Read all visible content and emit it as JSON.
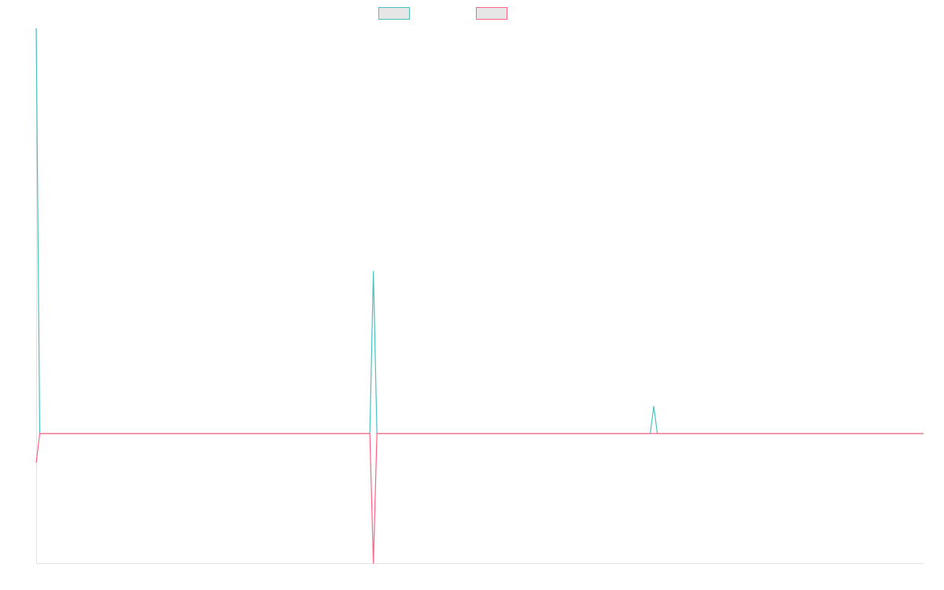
{
  "chart_data": {
    "type": "line",
    "title": "",
    "xlabel": "",
    "ylabel": "",
    "x": [
      0,
      1,
      2,
      3,
      4,
      5,
      6,
      7,
      8,
      9,
      10,
      11,
      12,
      13,
      14,
      15,
      16,
      17,
      18,
      19,
      20,
      21,
      22,
      23,
      24,
      25,
      26,
      27,
      28,
      29,
      30,
      31,
      32,
      33,
      34,
      35,
      36,
      37,
      38,
      39,
      40,
      41,
      42,
      43,
      44,
      45,
      46,
      47,
      48,
      49,
      50,
      51,
      52,
      53,
      54,
      55,
      56,
      57,
      58,
      59,
      60,
      61,
      62,
      63,
      64,
      65,
      66,
      67,
      68,
      69,
      70,
      71,
      72,
      73,
      74,
      75,
      76,
      77,
      78,
      79,
      80,
      81,
      82,
      83,
      84,
      85,
      86,
      87,
      88,
      89,
      90,
      91,
      92,
      93,
      94,
      95,
      96,
      97,
      98,
      99,
      100,
      101,
      102,
      103,
      104,
      105,
      106,
      107,
      108,
      109,
      110,
      111,
      112,
      113,
      114,
      115,
      116,
      117,
      118,
      119,
      120,
      121,
      122,
      123,
      124,
      125,
      126,
      127,
      128,
      129,
      130,
      131,
      132,
      133,
      134,
      135,
      136,
      137,
      138,
      139,
      140,
      141,
      142,
      143,
      144,
      145,
      146,
      147,
      148,
      149,
      150,
      151,
      152,
      153,
      154,
      155,
      156,
      157,
      158,
      159,
      160,
      161,
      162,
      163,
      164,
      165,
      166,
      167,
      168,
      169,
      170,
      171,
      172,
      173,
      174,
      175,
      176,
      177,
      178,
      179,
      180,
      181,
      182,
      183,
      184,
      185,
      186,
      187,
      188,
      189,
      190,
      191,
      192,
      193,
      194,
      195,
      196,
      197,
      198,
      199,
      200,
      201,
      202,
      203,
      204,
      205,
      206,
      207,
      208,
      209,
      210,
      211,
      212,
      213,
      214,
      215,
      216,
      217,
      218,
      219,
      220,
      221,
      222,
      223,
      224,
      225,
      226,
      227,
      228,
      229,
      230,
      231,
      232,
      233,
      234,
      235,
      236,
      237,
      238,
      239,
      240,
      241,
      242,
      243,
      244,
      245,
      246,
      247,
      248,
      249,
      250
    ],
    "ylim": [
      -200,
      625
    ],
    "grid": false,
    "legend": "top-center",
    "series": [
      {
        "color": "#4bc0c0",
        "spikes": {
          "0": 625,
          "95": 250,
          "174": 42
        },
        "default": 0
      },
      {
        "color": "#ff6384",
        "spikes": {
          "0": -45,
          "95": -200
        },
        "default": 0
      }
    ]
  }
}
